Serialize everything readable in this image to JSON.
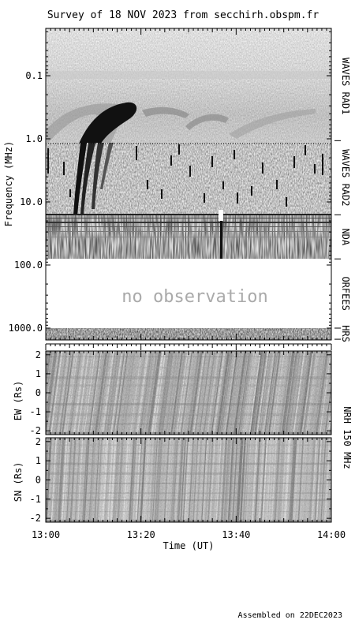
{
  "title": "Survey of 18 NOV 2023 from secchirh.obspm.fr",
  "footer": "Assembled on 22DEC2023",
  "chart_data": [
    {
      "type": "heatmap",
      "name": "dynamic spectrum",
      "ylabel": "Frequency (MHz)",
      "yscale": "log",
      "ylim": [
        0.02,
        1500
      ],
      "y_tick_labels": [
        "0.1",
        "1.0",
        "10.0",
        "100.0",
        "1000.0"
      ],
      "y_tick_values": [
        0.1,
        1.0,
        10.0,
        100.0,
        1000.0
      ],
      "bands": [
        {
          "label": "WAVES RAD1",
          "from": 0.02,
          "to": 1.07
        },
        {
          "label": "WAVES RAD2",
          "from": 1.07,
          "to": 16
        },
        {
          "label": "NDA",
          "from": 16,
          "to": 80
        },
        {
          "label": "ORFEES",
          "from": 80,
          "to": 1000
        },
        {
          "label": "HRS",
          "from": 1000,
          "to": 1500
        }
      ],
      "annotation": "no observation",
      "colormap": "grayscale (dark = intense)"
    },
    {
      "type": "heatmap",
      "name": "EW",
      "ylabel": "EW (Rs)",
      "ylim": [
        -2.2,
        2.2
      ],
      "y_tick_labels": [
        "2",
        "1",
        "0",
        "-1",
        "-2"
      ],
      "y_tick_values": [
        2,
        1,
        0,
        -1,
        -2
      ],
      "right_label": "NRH 150 MHz"
    },
    {
      "type": "heatmap",
      "name": "SN",
      "ylabel": "SN (Rs)",
      "ylim": [
        -2.2,
        2.2
      ],
      "y_tick_labels": [
        "2",
        "1",
        "0",
        "-1",
        "-2"
      ],
      "y_tick_values": [
        2,
        1,
        0,
        -1,
        -2
      ]
    }
  ],
  "x_axis": {
    "label": "Time (UT)",
    "tick_labels": [
      "13:00",
      "13:20",
      "13:40",
      "14:00"
    ],
    "tick_minutes": [
      0,
      20,
      40,
      60
    ]
  }
}
